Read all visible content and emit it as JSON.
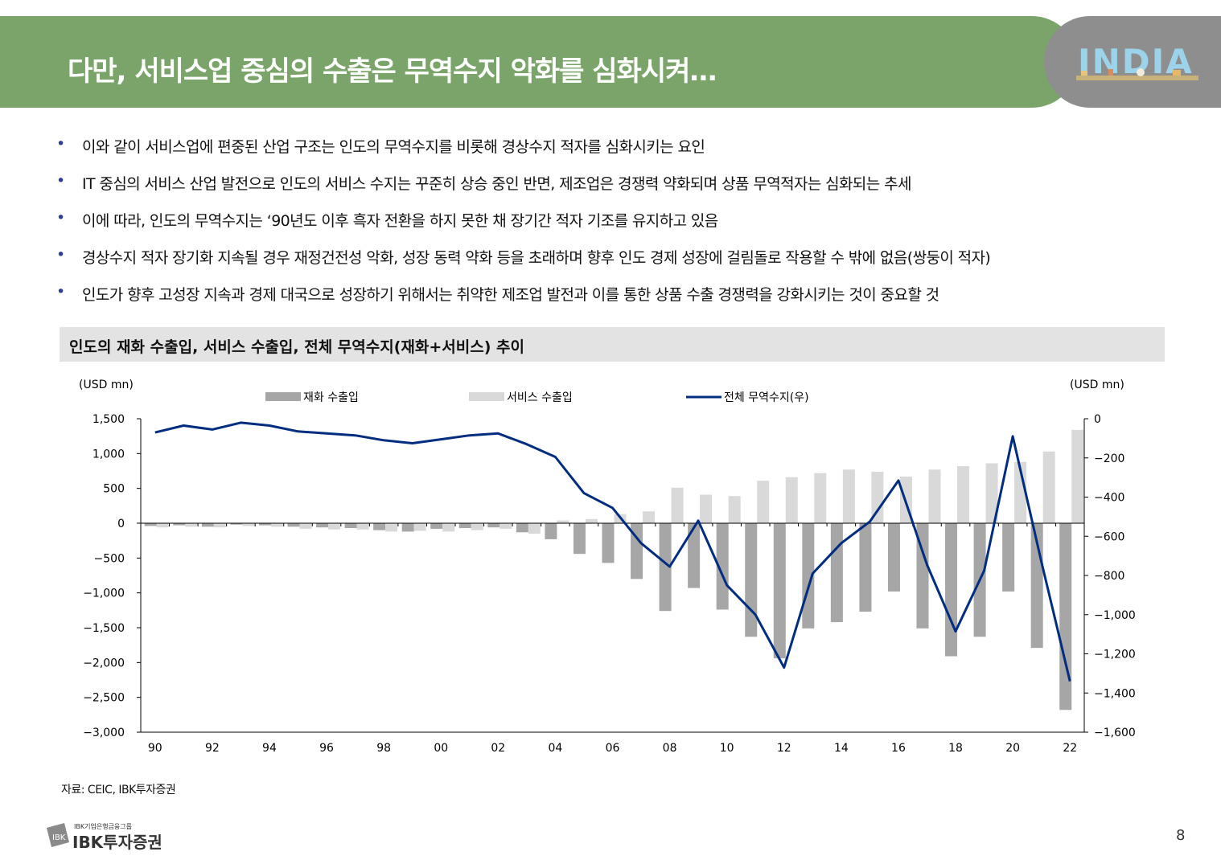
{
  "title": "다만, 서비스업 중심의 수출은 무역수지 악화를 심화시켜…",
  "logo_text": "INDIA",
  "bullets": [
    "이와 같이 서비스업에 편중된 산업 구조는 인도의 무역수지를 비롯해 경상수지 적자를 심화시키는 요인",
    "IT 중심의 서비스 산업 발전으로 인도의 서비스 수지는 꾸준히 상승 중인 반면, 제조업은 경쟁력 약화되며 상품 무역적자는 심화되는 추세",
    "이에 따라, 인도의 무역수지는 ‘90년도 이후 흑자 전환을 하지 못한 채 장기간 적자 기조를 유지하고 있음",
    "경상수지 적자 장기화 지속될 경우 재정건전성 악화, 성장 동력 약화 등을 초래하며 향후 인도 경제 성장에 걸림돌로 작용할 수 밖에 없음(쌍둥이 적자)",
    "인도가 향후 고성장 지속과 경제 대국으로 성장하기 위해서는 취약한 제조업 발전과 이를 통한 상품 수출 경쟁력을 강화시키는 것이 중요할 것"
  ],
  "bullet_symbol": "•",
  "chart_header": "인도의 재화 수출입, 서비스 수출입, 전체 무역수지(재화+서비스) 추이",
  "source": "자료: CEIC, IBK투자증권",
  "footer": {
    "group": "IBK기업은행금융그룹",
    "brand": "IBK투자증권",
    "page": "8"
  },
  "colors": {
    "title_bg": "#7BA46B",
    "goods": "#A6A6A6",
    "services": "#D9D9D9",
    "line": "#002D7F"
  },
  "chart_data": {
    "type": "bar+line",
    "left_unit": "(USD mn)",
    "right_unit": "(USD mn)",
    "x": [
      "90",
      "91",
      "92",
      "93",
      "94",
      "95",
      "96",
      "97",
      "98",
      "99",
      "00",
      "01",
      "02",
      "03",
      "04",
      "05",
      "06",
      "07",
      "08",
      "09",
      "10",
      "11",
      "12",
      "13",
      "14",
      "15",
      "16",
      "17",
      "18",
      "19",
      "20",
      "21",
      "22"
    ],
    "x_tick_labels": [
      "90",
      "92",
      "94",
      "96",
      "98",
      "00",
      "02",
      "04",
      "06",
      "08",
      "10",
      "12",
      "14",
      "16",
      "18",
      "20",
      "22"
    ],
    "left_ylim": [
      -3000,
      1500
    ],
    "left_ticks": [
      "1,500",
      "1,000",
      "500",
      "0",
      "−500",
      "−1,000",
      "−1,500",
      "−2,000",
      "−2,500",
      "−3,000"
    ],
    "right_ylim": [
      -1600,
      0
    ],
    "right_ticks": [
      "0",
      "−200",
      "−400",
      "−600",
      "−800",
      "−1,000",
      "−1,200",
      "−1,400",
      "−1,600"
    ],
    "series": [
      {
        "name": "재화 수출입",
        "axis": "left",
        "kind": "bar",
        "values": [
          -40,
          -30,
          -50,
          -20,
          -30,
          -50,
          -60,
          -70,
          -100,
          -120,
          -80,
          -70,
          -60,
          -130,
          -230,
          -440,
          -570,
          -800,
          -1260,
          -930,
          -1240,
          -1630,
          -1940,
          -1510,
          -1420,
          -1270,
          -980,
          -1510,
          -1910,
          -1630,
          -980,
          -1790,
          -2680
        ]
      },
      {
        "name": "서비스 수출입",
        "axis": "left",
        "kind": "bar",
        "values": [
          -60,
          -50,
          -60,
          -40,
          -50,
          -80,
          -90,
          -90,
          -120,
          -110,
          -120,
          -100,
          -80,
          -150,
          40,
          60,
          130,
          170,
          510,
          410,
          390,
          610,
          660,
          720,
          770,
          740,
          670,
          770,
          820,
          860,
          880,
          1030,
          1340
        ]
      },
      {
        "name": "전체 무역수지(우)",
        "axis": "right",
        "kind": "line",
        "values": [
          -70,
          -35,
          -55,
          -20,
          -35,
          -65,
          -75,
          -85,
          -110,
          -125,
          -105,
          -85,
          -75,
          -130,
          -195,
          -380,
          -455,
          -635,
          -755,
          -520,
          -850,
          -1000,
          -1270,
          -790,
          -635,
          -525,
          -315,
          -745,
          -1085,
          -775,
          -90,
          -730,
          -1340
        ]
      }
    ]
  }
}
